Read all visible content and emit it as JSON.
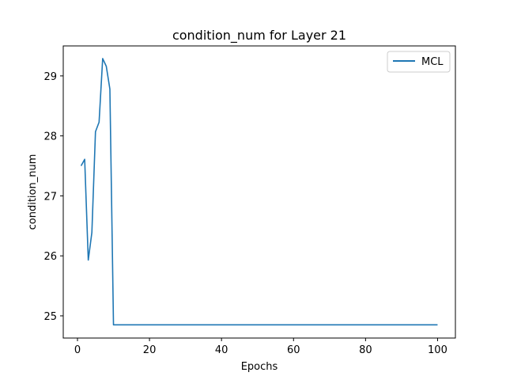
{
  "chart_data": {
    "type": "line",
    "title": "condition_num for Layer 21",
    "xlabel": "Epochs",
    "ylabel": "condition_num",
    "xlim": [
      -3.95,
      104.95
    ],
    "ylim": [
      24.63,
      29.5
    ],
    "xticks": [
      0,
      20,
      40,
      60,
      80,
      100
    ],
    "yticks": [
      25,
      26,
      27,
      28,
      29
    ],
    "grid": false,
    "legend_position": "top-right",
    "series": [
      {
        "name": "MCL",
        "color": "#1f77b4",
        "x": [
          1,
          2,
          3,
          4,
          5,
          6,
          7,
          8,
          9,
          10,
          100
        ],
        "y": [
          27.5,
          27.61,
          25.93,
          26.39,
          28.07,
          28.23,
          29.29,
          29.16,
          28.78,
          24.85,
          24.85
        ]
      }
    ]
  }
}
